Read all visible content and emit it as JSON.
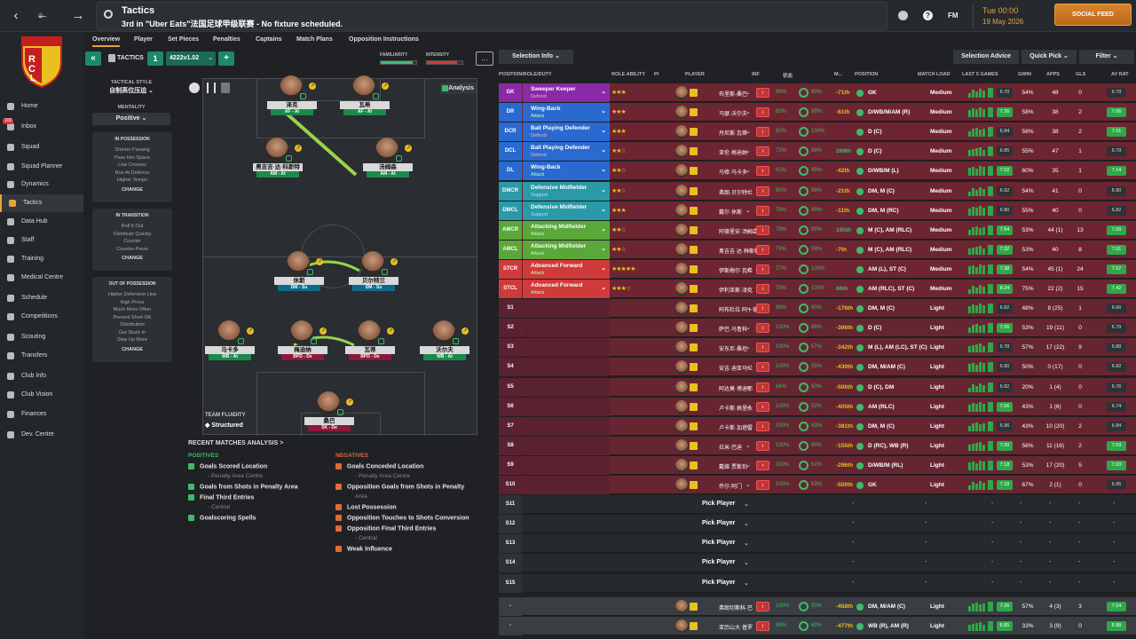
{
  "topbar": {
    "title": "Tactics",
    "subtitle": "3rd in \"Uber Eats\"法国足球甲级联赛 - No fixture scheduled.",
    "fm": "FM",
    "time": "Tue 00:00",
    "date": "19 May 2026",
    "social_feed": "SOCIAL FEED"
  },
  "sidebar": {
    "inbox_badge": "165",
    "items": [
      "Home",
      "Inbox",
      "Squad",
      "Squad Planner",
      "Dynamics",
      "Tactics",
      "Data Hub",
      "Staff",
      "Training",
      "Medical Centre",
      "Schedule",
      "Competitions",
      "Scouting",
      "Transfers",
      "Club Info",
      "Club Vision",
      "Finances",
      "Dev. Centre"
    ]
  },
  "tabs": [
    "Overview",
    "Player",
    "Set Pieces",
    "Penalties",
    "Captains",
    "Match Plans",
    "Opposition Instructions"
  ],
  "tactic": {
    "label": "TACTICS",
    "slot": "1",
    "name": "4222v1.02",
    "familiarity": "FAMILIARITY",
    "intensity": "INTENSITY",
    "style_label": "TACTICAL STYLE",
    "style": "自制高位压迫",
    "mentality_label": "MENTALITY",
    "mentality": "Positive",
    "in_possession": "IN POSSESSION",
    "in_possession_items": [
      "Shorter Passing",
      "Pass Into Space",
      "Low Crosses",
      "Run At Defence",
      "Higher Tempo"
    ],
    "in_transition": "IN TRANSITION",
    "in_transition_items": [
      "Roll It Out",
      "Distribute Quickly",
      "Counter",
      "Counter-Press"
    ],
    "out_possession": "OUT OF POSSESSION",
    "out_possession_items": [
      "Higher Defensive Line",
      "High Press",
      "Much More Often",
      "Prevent Short GK",
      "Distribution",
      "Get Stuck In",
      "Step Up More"
    ],
    "change": "CHANGE",
    "analysis": "Analysis",
    "fluidity_label": "TEAM FLUIDITY",
    "fluidity": "Structured"
  },
  "pitch_players": [
    {
      "name": "泽克",
      "role": "AF - At",
      "duty": "at"
    },
    {
      "name": "瓦希",
      "role": "AF - At",
      "duty": "at"
    },
    {
      "name": "奥吉吉·达·科斯特",
      "role": "AM - At",
      "duty": "at"
    },
    {
      "name": "汤姆森",
      "role": "AM - At",
      "duty": "at"
    },
    {
      "name": "休斯",
      "role": "DM - Su",
      "duty": "su"
    },
    {
      "name": "贝尔特兰",
      "role": "DM - Su",
      "duty": "su"
    },
    {
      "name": "马卡多",
      "role": "WB - At",
      "duty": "at"
    },
    {
      "name": "梅迪纳",
      "role": "BPD - De",
      "duty": "de"
    },
    {
      "name": "瓦蒂",
      "role": "BPD - De",
      "duty": "de"
    },
    {
      "name": "沃尔夫",
      "role": "WB - At",
      "duty": "at"
    },
    {
      "name": "桑巴",
      "role": "SK - De",
      "duty": "de"
    }
  ],
  "analysis": {
    "title": "RECENT MATCHES ANALYSIS >",
    "positives_label": "POSITIVES",
    "negatives_label": "NEGATIVES",
    "positives": [
      "Goals Scored Location",
      "Goals from Shots in Penalty Area",
      "Final Third Entries",
      "Goalscoring Spells"
    ],
    "positives_sub": [
      "- Penalty Area Centre",
      "",
      "- Central",
      ""
    ],
    "negatives": [
      "Goals Conceded Location",
      "Opposition Goals from Shots in Penalty",
      "Lost Possession",
      "Opposition Touches to Shots Conversion",
      "Opposition Final Third Entries",
      "Weak Influence"
    ],
    "negatives_sub": [
      "- Penalty Area Centre",
      "Area",
      "",
      "",
      "- Central",
      ""
    ]
  },
  "table": {
    "selection_info": "Selection Info",
    "selection_advice": "Selection Advice",
    "quick_pick": "Quick Pick",
    "filter": "Filter",
    "headers": [
      "POSITION/ROLE/DUTY",
      "ROLE ABILITY",
      "PI",
      "PLAYER",
      "INF",
      "状态",
      "M...",
      "POSITION",
      "MATCH LOAD",
      "LAST 5 GAMES",
      "GWIN",
      "APPS",
      "GLS",
      "AV RAT"
    ],
    "rows": [
      {
        "pos": "GK",
        "role": "Sweeper Keeper",
        "duty": "Defend",
        "stars": "★★★",
        "player": "布里斯-桑巴",
        "fit": "98%",
        "mor": "99%",
        "delta": "-71th",
        "dcol": "#e8c020",
        "ppos": "GK",
        "load": "Medium",
        "avg": "6.70",
        "gw": "54%",
        "apps": "48",
        "gls": "0",
        "rat": "6.79",
        "rg": false,
        "ag": false,
        "color": "#8a2aa8"
      },
      {
        "pos": "DR",
        "role": "Wing-Back",
        "duty": "Attack",
        "stars": "★★★",
        "player": "马瑟·沃尔夫",
        "fit": "83%",
        "mor": "99%",
        "delta": "-61th",
        "dcol": "#e8c020",
        "ppos": "D/WB/M/AM (R)",
        "load": "Medium",
        "avg": "7.26",
        "gw": "58%",
        "apps": "38",
        "gls": "2",
        "rat": "7.06",
        "rg": true,
        "ag": true,
        "color": "#2a6ad0"
      },
      {
        "pos": "DCR",
        "role": "Ball Playing Defender",
        "duty": "Defend",
        "stars": "★★★",
        "player": "丹尼斯·瓦蒂",
        "fit": "82%",
        "mor": "100%",
        "delta": "",
        "dcol": "#e8c020",
        "ppos": "D (C)",
        "load": "Medium",
        "avg": "6.84",
        "gw": "58%",
        "apps": "38",
        "gls": "2",
        "rat": "7.01",
        "rg": true,
        "ag": false,
        "color": "#2a6ad0"
      },
      {
        "pos": "DCL",
        "role": "Ball Playing Defender",
        "duty": "Defend",
        "stars": "★★☆",
        "player": "亚伦·梅迪纳",
        "fit": "73%",
        "mor": "99%",
        "delta": "269th",
        "dcol": "#e8c020",
        "ppos": "D (C)",
        "load": "Medium",
        "avg": "6.85",
        "gw": "55%",
        "apps": "47",
        "gls": "1",
        "rat": "6.79",
        "rg": false,
        "ag": false,
        "color": "#2a6ad0"
      },
      {
        "pos": "DL",
        "role": "Wing-Back",
        "duty": "Attack",
        "stars": "★★☆",
        "player": "马修·马卡多",
        "fit": "91%",
        "mor": "99%",
        "delta": "-42th",
        "dcol": "#e8c020",
        "ppos": "D/WB/M (L)",
        "load": "Medium",
        "avg": "7.02",
        "gw": "60%",
        "apps": "35",
        "gls": "1",
        "rat": "7.14",
        "rg": true,
        "ag": true,
        "color": "#2a6ad0"
      },
      {
        "pos": "DMCR",
        "role": "Defensive Midfielder",
        "duty": "Support",
        "stars": "★★☆",
        "player": "弗朗·贝尔特兰",
        "fit": "90%",
        "mor": "99%",
        "delta": "-21th",
        "dcol": "#e8c020",
        "ppos": "DM, M (C)",
        "load": "Medium",
        "avg": "6.92",
        "gw": "54%",
        "apps": "41",
        "gls": "0",
        "rat": "6.90",
        "rg": false,
        "ag": false,
        "color": "#2a9aa8"
      },
      {
        "pos": "DMCL",
        "role": "Defensive Midfielder",
        "duty": "Support",
        "stars": "★★★",
        "player": "戴尔·休斯",
        "fit": "79%",
        "mor": "99%",
        "delta": "-11th",
        "dcol": "#e8c020",
        "ppos": "DM, M (RC)",
        "load": "Medium",
        "avg": "6.80",
        "gw": "55%",
        "apps": "40",
        "gls": "0",
        "rat": "6.82",
        "rg": false,
        "ag": false,
        "color": "#2a9aa8"
      },
      {
        "pos": "AMCR",
        "role": "Attacking Midfielder",
        "duty": "Attack",
        "stars": "★★☆",
        "player": "阿德里安·汤姆森",
        "fit": "79%",
        "mor": "99%",
        "delta": "195th",
        "dcol": "#e8c020",
        "ppos": "M (C), AM (RLC)",
        "load": "Medium",
        "avg": "7.54",
        "gw": "53%",
        "apps": "44 (1)",
        "gls": "13",
        "rat": "7.09",
        "rg": true,
        "ag": true,
        "color": "#5aa83a"
      },
      {
        "pos": "AMCL",
        "role": "Attacking Midfielder",
        "duty": "Attack",
        "stars": "★★☆",
        "player": "奥吉吉·达·科斯特",
        "fit": "79%",
        "mor": "99%",
        "delta": "-7th",
        "dcol": "#e8c020",
        "ppos": "M (C), AM (RLC)",
        "load": "Medium",
        "avg": "7.32",
        "gw": "53%",
        "apps": "40",
        "gls": "8",
        "rat": "7.01",
        "rg": true,
        "ag": true,
        "color": "#5aa83a"
      },
      {
        "pos": "STCR",
        "role": "Advanced Forward",
        "duty": "Attack",
        "stars": "★★★★★",
        "player": "伊斯梅尔·瓦希",
        "fit": "77%",
        "mor": "100%",
        "delta": "",
        "dcol": "#e8c020",
        "ppos": "AM (L), ST (C)",
        "load": "Medium",
        "avg": "7.38",
        "gw": "54%",
        "apps": "45 (1)",
        "gls": "24",
        "rat": "7.07",
        "rg": true,
        "ag": true,
        "color": "#d03a3a"
      },
      {
        "pos": "STCL",
        "role": "Advanced Forward",
        "duty": "Attack",
        "stars": "★★★☆",
        "player": "伊利亚斯·泽克",
        "fit": "78%",
        "mor": "100%",
        "delta": "86th",
        "dcol": "#e8c020",
        "ppos": "AM (RLC), ST (C)",
        "load": "Medium",
        "avg": "8.34",
        "gw": "75%",
        "apps": "22 (2)",
        "gls": "15",
        "rat": "7.42",
        "rg": true,
        "ag": true,
        "color": "#d03a3a"
      },
      {
        "pos": "S1",
        "role": "",
        "duty": "",
        "stars": "",
        "player": "阿布杜拉·阿卜德",
        "fit": "98%",
        "mor": "80%",
        "delta": "-176th",
        "dcol": "#3da8e8",
        "ppos": "DM, M (C)",
        "load": "Light",
        "avg": "6.82",
        "gw": "48%",
        "apps": "8 (25)",
        "gls": "1",
        "rat": "6.66",
        "rg": false,
        "ag": false,
        "color": ""
      },
      {
        "pos": "S2",
        "role": "",
        "duty": "",
        "stars": "",
        "player": "萨巴·马鲁科",
        "fit": "100%",
        "mor": "86%",
        "delta": "-306th",
        "dcol": "#e8c020",
        "ppos": "D (C)",
        "load": "Light",
        "avg": "7.06",
        "gw": "53%",
        "apps": "19 (11)",
        "gls": "0",
        "rat": "6.79",
        "rg": false,
        "ag": true,
        "color": ""
      },
      {
        "pos": "S3",
        "role": "",
        "duty": "",
        "stars": "",
        "player": "安东尼·桑坦",
        "fit": "100%",
        "mor": "57%",
        "delta": "-342th",
        "dcol": "#e8c020",
        "ppos": "M (L), AM (LC), ST (C)",
        "load": "Light",
        "avg": "6.78",
        "gw": "57%",
        "apps": "17 (22)",
        "gls": "9",
        "rat": "6.89",
        "rg": false,
        "ag": false,
        "color": ""
      },
      {
        "pos": "S4",
        "role": "",
        "duty": "",
        "stars": "",
        "player": "安吉·迪亚马兰",
        "fit": "100%",
        "mor": "55%",
        "delta": "-430th",
        "dcol": "#e8c020",
        "ppos": "DM, M/AM (C)",
        "load": "Light",
        "avg": "6.80",
        "gw": "50%",
        "apps": "0 (17)",
        "gls": "0",
        "rat": "6.82",
        "rg": false,
        "ag": false,
        "color": ""
      },
      {
        "pos": "S5",
        "role": "",
        "duty": "",
        "stars": "",
        "player": "阿达莫·博迪耶",
        "fit": "94%",
        "mor": "50%",
        "delta": "-500th",
        "dcol": "#e8c020",
        "ppos": "D (C), DM",
        "load": "Light",
        "avg": "6.92",
        "gw": "20%",
        "apps": "1 (4)",
        "gls": "0",
        "rat": "6.76",
        "rg": false,
        "ag": false,
        "color": ""
      },
      {
        "pos": "S6",
        "role": "",
        "duty": "",
        "stars": "",
        "player": "卢卡斯·佩里永",
        "fit": "100%",
        "mor": "52%",
        "delta": "-405th",
        "dcol": "#e8c020",
        "ppos": "AM (RLC)",
        "load": "Light",
        "avg": "7.06",
        "gw": "43%",
        "apps": "1 (6)",
        "gls": "0",
        "rat": "6.74",
        "rg": false,
        "ag": true,
        "color": ""
      },
      {
        "pos": "S7",
        "role": "",
        "duty": "",
        "stars": "",
        "player": "卢卡斯·加塔雷",
        "fit": "100%",
        "mor": "53%",
        "delta": "-381th",
        "dcol": "#e8c020",
        "ppos": "DM, M (C)",
        "load": "Light",
        "avg": "6.96",
        "gw": "43%",
        "apps": "10 (20)",
        "gls": "2",
        "rat": "6.84",
        "rg": false,
        "ag": false,
        "color": ""
      },
      {
        "pos": "S8",
        "role": "",
        "duty": "",
        "stars": "",
        "player": "拉米·巴迪",
        "fit": "100%",
        "mor": "99%",
        "delta": "-155th",
        "dcol": "#3da8e8",
        "ppos": "D (RC), WB (R)",
        "load": "Light",
        "avg": "7.00",
        "gw": "56%",
        "apps": "11 (16)",
        "gls": "2",
        "rat": "7.03",
        "rg": true,
        "ag": true,
        "color": ""
      },
      {
        "pos": "S9",
        "role": "",
        "duty": "",
        "stars": "",
        "player": "戴维·贾斯珀",
        "fit": "100%",
        "mor": "62%",
        "delta": "-296th",
        "dcol": "#3da8e8",
        "ppos": "D/WB/M (RL)",
        "load": "Light",
        "avg": "7.18",
        "gw": "53%",
        "apps": "17 (20)",
        "gls": "5",
        "rat": "7.03",
        "rg": true,
        "ag": true,
        "color": ""
      },
      {
        "pos": "S10",
        "role": "",
        "duty": "",
        "stars": "",
        "player": "乔尔·阿门",
        "fit": "100%",
        "mor": "53%",
        "delta": "-500th",
        "dcol": "#e8c020",
        "ppos": "GK",
        "load": "Light",
        "avg": "7.18",
        "gw": "67%",
        "apps": "2 (1)",
        "gls": "0",
        "rat": "6.95",
        "rg": false,
        "ag": true,
        "color": ""
      }
    ],
    "empty_rows": [
      "S11",
      "S12",
      "S13",
      "S14",
      "S15"
    ],
    "pick_player": "Pick Player",
    "dash": "-",
    "bottom_rows": [
      {
        "pos": "-",
        "player": "弗朗切斯科·巴",
        "fit": "100%",
        "mor": "50%",
        "delta": "-458th",
        "ppos": "DM, M/AM (C)",
        "load": "Light",
        "avg": "7.26",
        "gw": "57%",
        "apps": "4 (3)",
        "gls": "3",
        "rat": "7.04"
      },
      {
        "pos": "-",
        "player": "亚历山大·普罗",
        "fit": "96%",
        "mor": "60%",
        "delta": "-477th",
        "ppos": "WB (R), AM (R)",
        "load": "Light",
        "avg": "6.85",
        "gw": "33%",
        "apps": "3 (9)",
        "gls": "0",
        "rat": "6.88"
      }
    ]
  }
}
